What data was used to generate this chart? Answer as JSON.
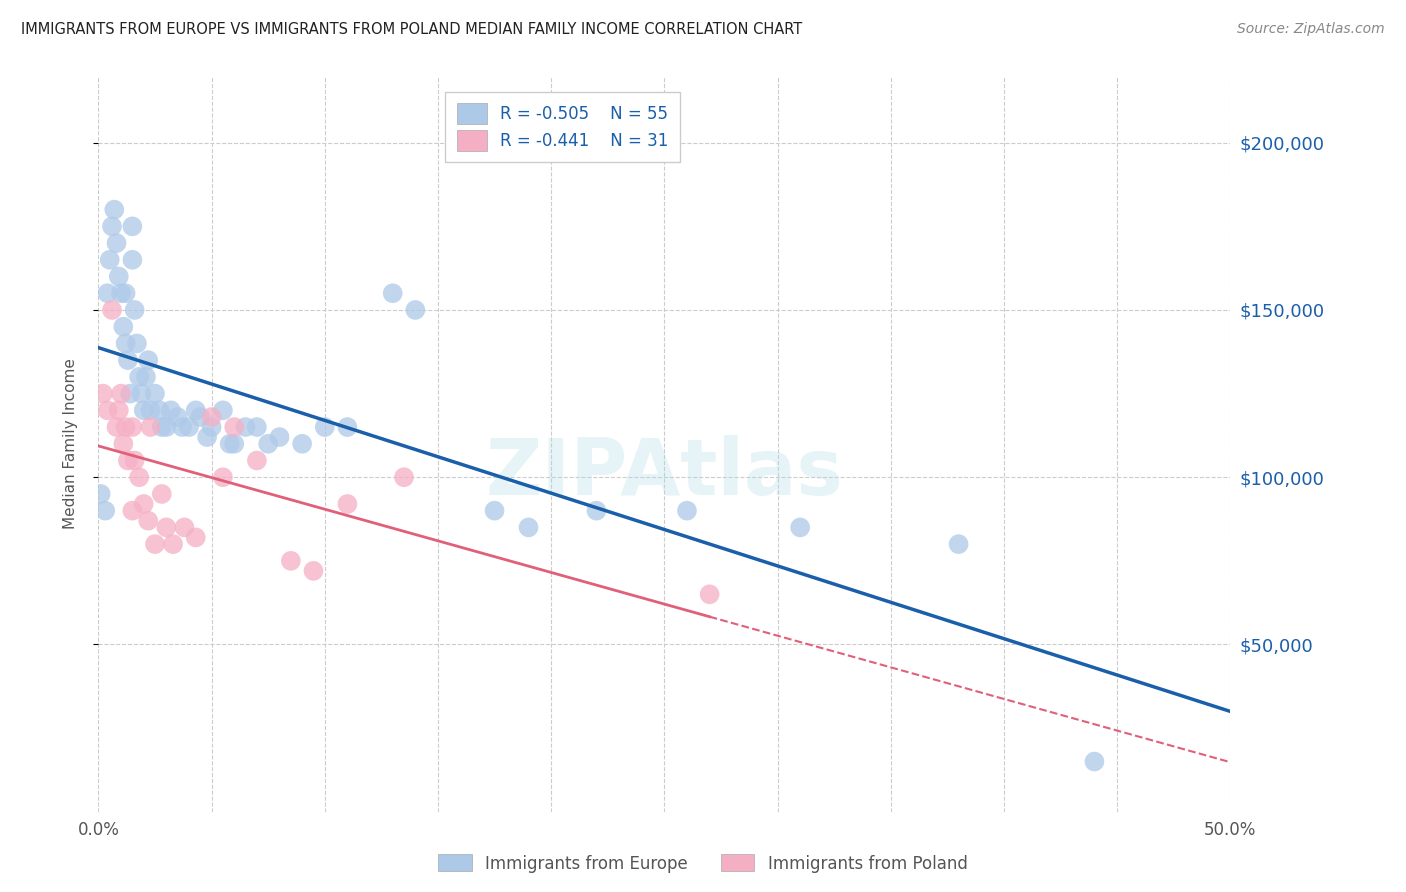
{
  "title": "IMMIGRANTS FROM EUROPE VS IMMIGRANTS FROM POLAND MEDIAN FAMILY INCOME CORRELATION CHART",
  "source": "Source: ZipAtlas.com",
  "ylabel": "Median Family Income",
  "legend_europe": "Immigrants from Europe",
  "legend_poland": "Immigrants from Poland",
  "legend_r_europe": "R = -0.505",
  "legend_n_europe": "N = 55",
  "legend_r_poland": "R = -0.441",
  "legend_n_poland": "N = 31",
  "xlim": [
    0.0,
    0.5
  ],
  "ylim": [
    0,
    220000
  ],
  "yticks": [
    50000,
    100000,
    150000,
    200000
  ],
  "ytick_labels": [
    "$50,000",
    "$100,000",
    "$150,000",
    "$200,000"
  ],
  "xticks": [
    0.0,
    0.05,
    0.1,
    0.15,
    0.2,
    0.25,
    0.3,
    0.35,
    0.4,
    0.45,
    0.5
  ],
  "color_europe": "#adc9e8",
  "color_poland": "#f5afc4",
  "line_color_europe": "#1a5faa",
  "line_color_poland": "#e0607a",
  "watermark": "ZIPAtlas",
  "europe_x": [
    0.001,
    0.003,
    0.004,
    0.005,
    0.006,
    0.007,
    0.008,
    0.009,
    0.01,
    0.011,
    0.012,
    0.012,
    0.013,
    0.014,
    0.015,
    0.015,
    0.016,
    0.017,
    0.018,
    0.019,
    0.02,
    0.021,
    0.022,
    0.023,
    0.025,
    0.027,
    0.028,
    0.03,
    0.032,
    0.035,
    0.037,
    0.04,
    0.043,
    0.045,
    0.048,
    0.05,
    0.055,
    0.058,
    0.06,
    0.065,
    0.07,
    0.075,
    0.08,
    0.09,
    0.1,
    0.11,
    0.13,
    0.14,
    0.175,
    0.19,
    0.22,
    0.26,
    0.31,
    0.38,
    0.44
  ],
  "europe_y": [
    95000,
    90000,
    155000,
    165000,
    175000,
    180000,
    170000,
    160000,
    155000,
    145000,
    140000,
    155000,
    135000,
    125000,
    175000,
    165000,
    150000,
    140000,
    130000,
    125000,
    120000,
    130000,
    135000,
    120000,
    125000,
    120000,
    115000,
    115000,
    120000,
    118000,
    115000,
    115000,
    120000,
    118000,
    112000,
    115000,
    120000,
    110000,
    110000,
    115000,
    115000,
    110000,
    112000,
    110000,
    115000,
    115000,
    155000,
    150000,
    90000,
    85000,
    90000,
    90000,
    85000,
    80000,
    15000
  ],
  "poland_x": [
    0.002,
    0.004,
    0.006,
    0.008,
    0.009,
    0.01,
    0.011,
    0.012,
    0.013,
    0.015,
    0.015,
    0.016,
    0.018,
    0.02,
    0.022,
    0.023,
    0.025,
    0.028,
    0.03,
    0.033,
    0.038,
    0.043,
    0.05,
    0.055,
    0.06,
    0.07,
    0.085,
    0.095,
    0.11,
    0.135,
    0.27
  ],
  "poland_y": [
    125000,
    120000,
    150000,
    115000,
    120000,
    125000,
    110000,
    115000,
    105000,
    90000,
    115000,
    105000,
    100000,
    92000,
    87000,
    115000,
    80000,
    95000,
    85000,
    80000,
    85000,
    82000,
    118000,
    100000,
    115000,
    105000,
    75000,
    72000,
    92000,
    100000,
    65000
  ]
}
